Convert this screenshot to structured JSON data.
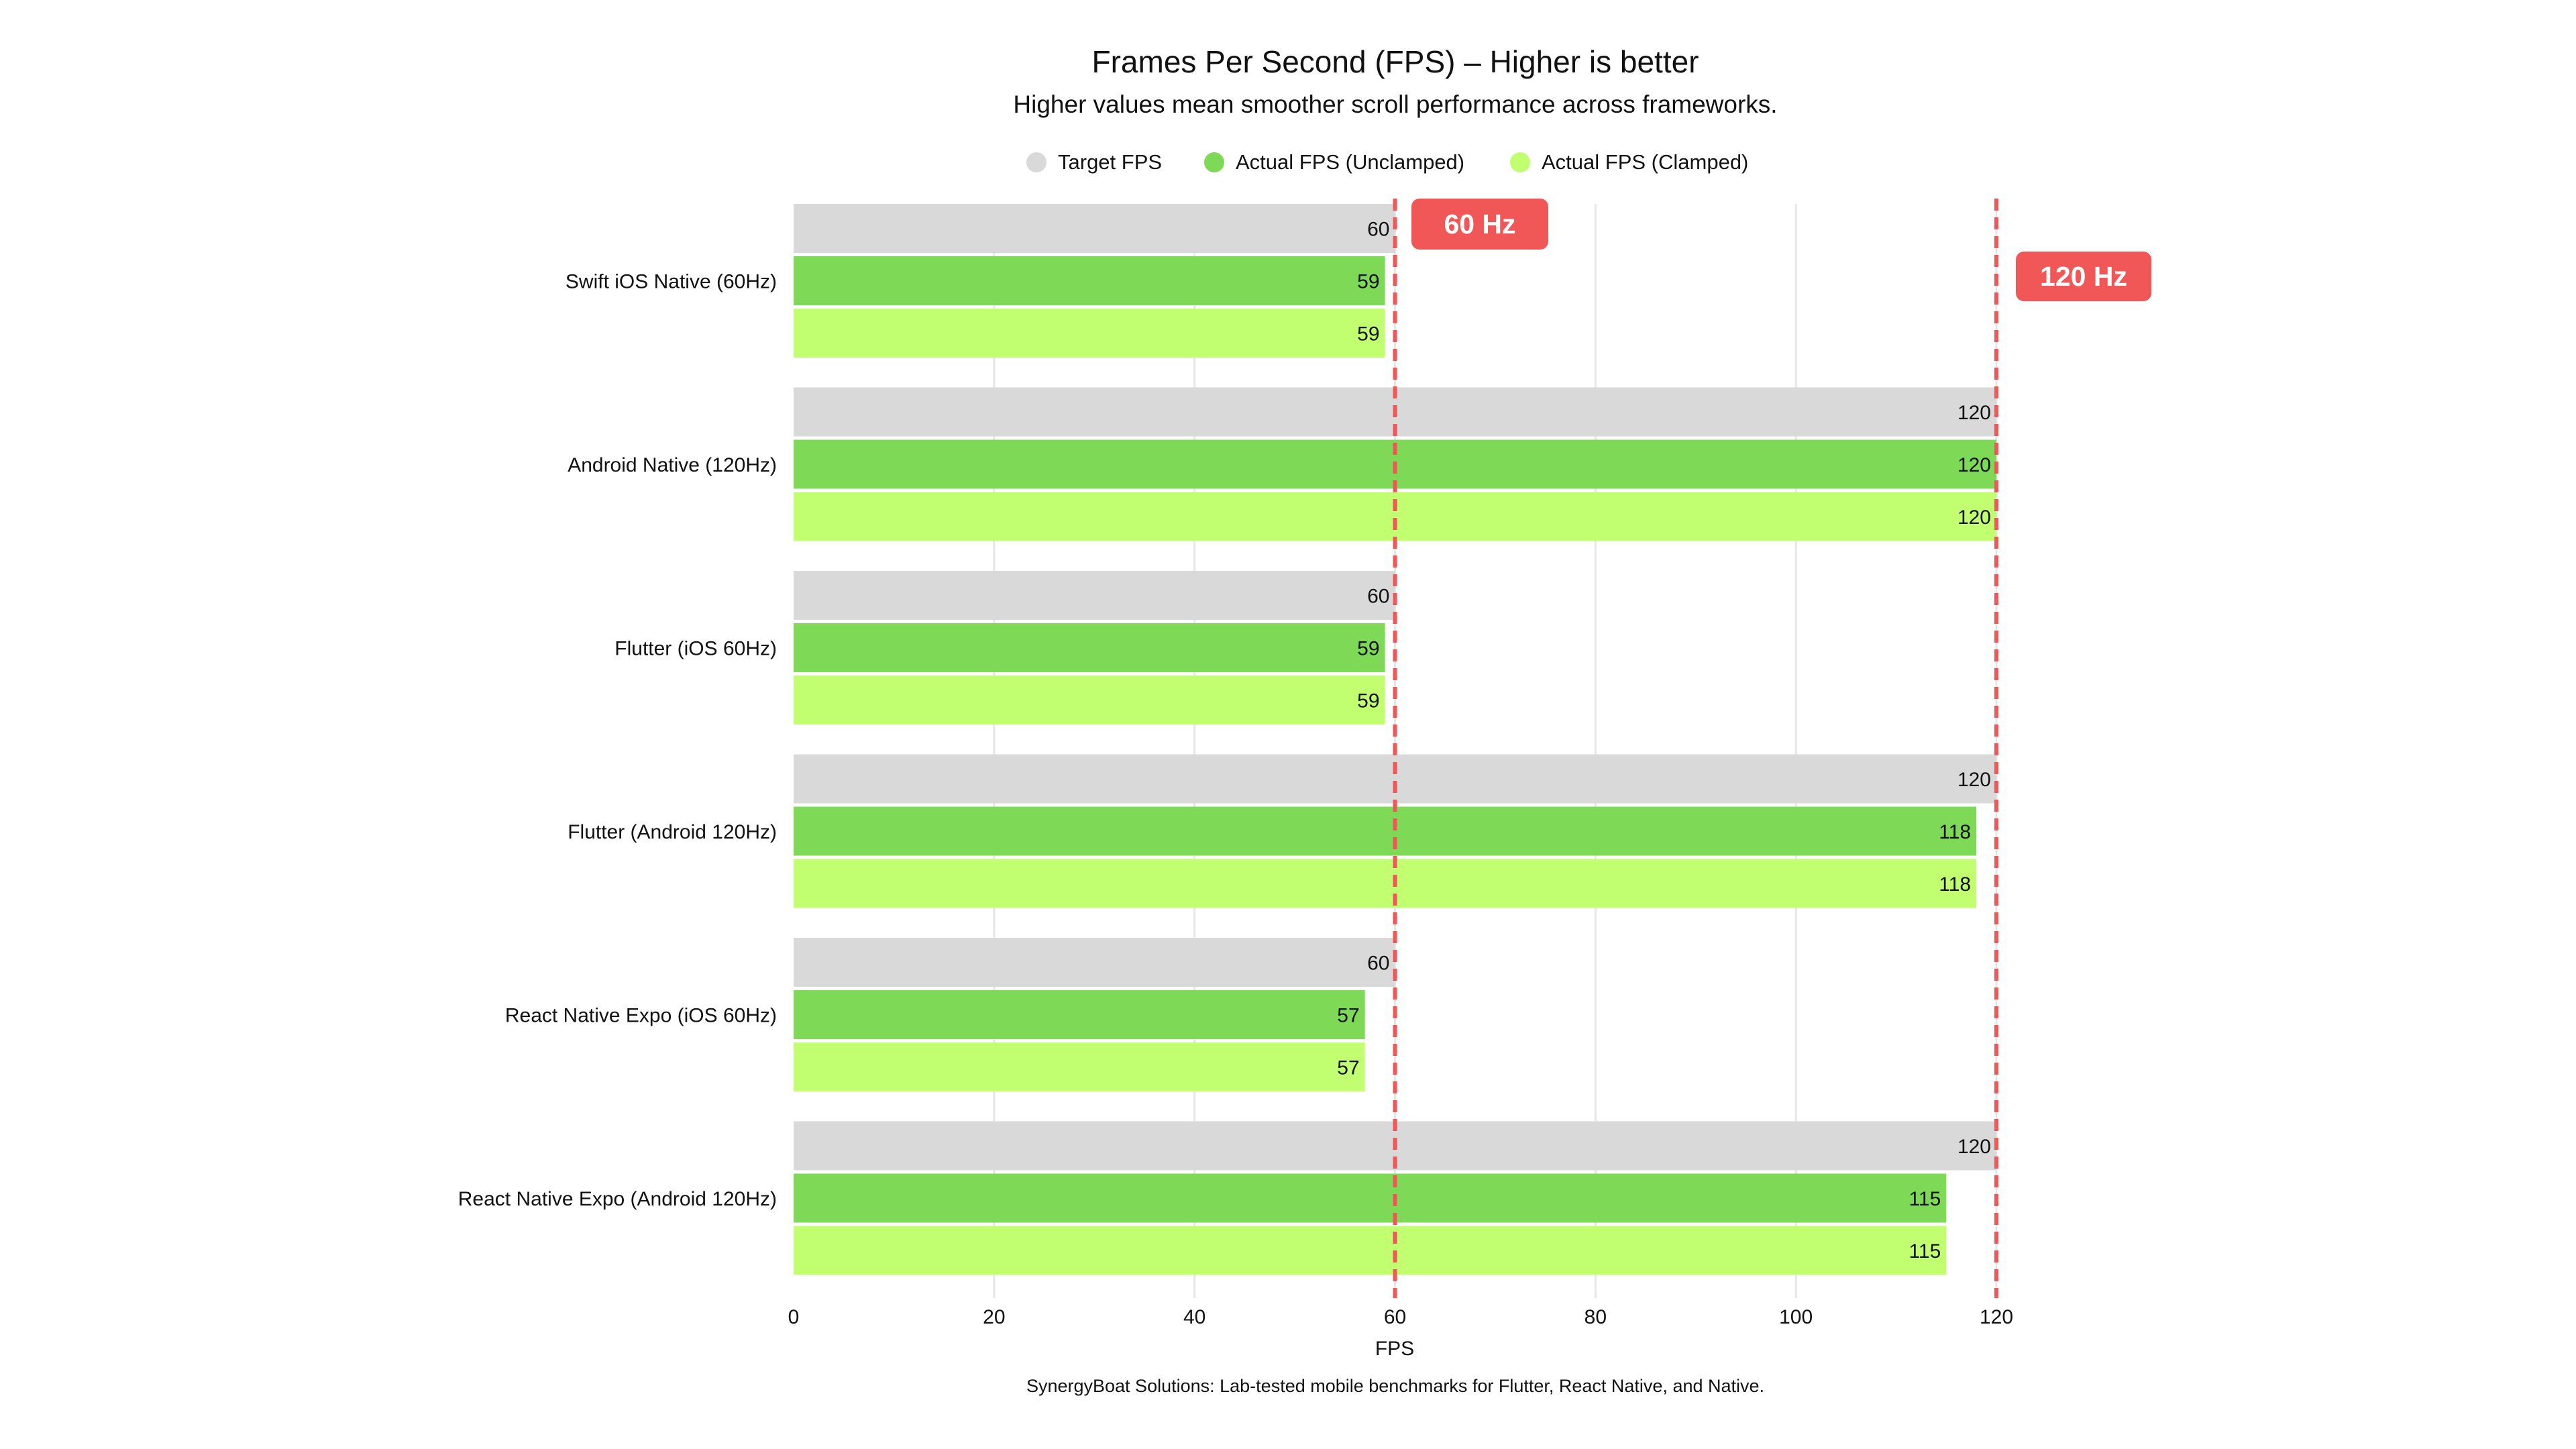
{
  "chart_data": {
    "type": "bar",
    "orientation": "horizontal",
    "title": "Frames Per Second (FPS) – Higher is better",
    "subtitle": "Higher values mean smoother scroll performance across frameworks.",
    "xlabel": "FPS",
    "ylabel": "",
    "xlim": [
      0,
      120
    ],
    "xticks": [
      0,
      20,
      40,
      60,
      80,
      100,
      120
    ],
    "grid": "vertical",
    "legend_position": "top",
    "categories": [
      "Swift iOS Native (60Hz)",
      "Android Native (120Hz)",
      "Flutter (iOS 60Hz)",
      "Flutter (Android 120Hz)",
      "React Native Expo (iOS 60Hz)",
      "React Native Expo (Android 120Hz)"
    ],
    "series": [
      {
        "name": "Target FPS",
        "color": "#d9d9d9",
        "values": [
          60,
          120,
          60,
          120,
          60,
          120
        ]
      },
      {
        "name": "Actual FPS (Unclamped)",
        "color": "#7ed957",
        "values": [
          59,
          120,
          59,
          118,
          57,
          115
        ]
      },
      {
        "name": "Actual FPS (Clamped)",
        "color": "#c2ff70",
        "values": [
          59,
          120,
          59,
          118,
          57,
          115
        ]
      }
    ],
    "reference_lines": [
      {
        "value": 60,
        "label": "60 Hz",
        "color": "#f25757"
      },
      {
        "value": 120,
        "label": "120 Hz",
        "color": "#f25757"
      }
    ],
    "footer": "SynergyBoat Solutions: Lab-tested mobile benchmarks for Flutter, React Native, and Native."
  }
}
